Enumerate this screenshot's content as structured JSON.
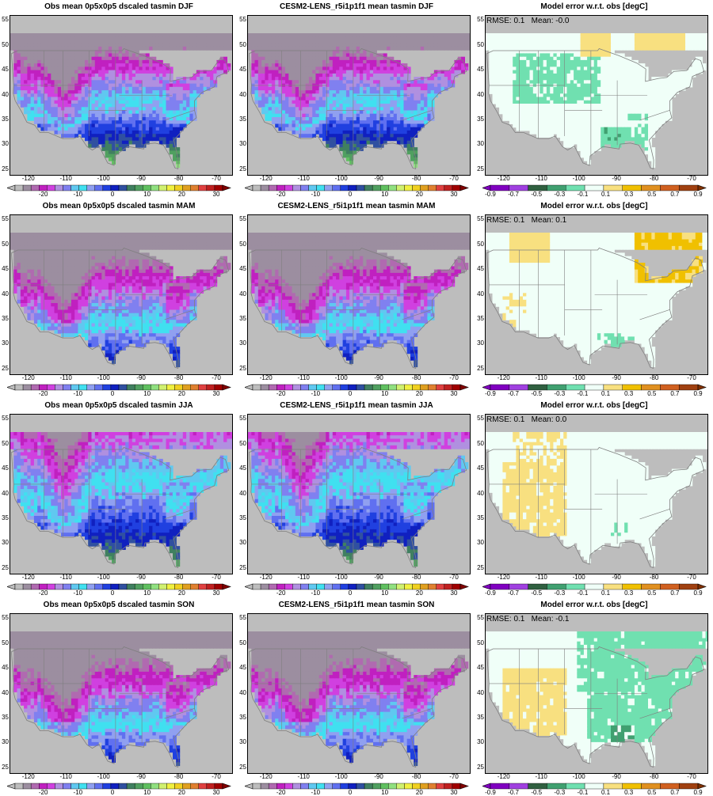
{
  "rows": [
    {
      "season": "DJF",
      "obs_title": "Obs mean 0p5x0p5 dscaled tasmin DJF",
      "model_title": "CESM2-LENS_r5i1p1f1 mean tasmin DJF",
      "err_title": "Model error w.r.t. obs [degC]",
      "stats": "RMSE: 0.1   Mean: -0.0"
    },
    {
      "season": "MAM",
      "obs_title": "Obs mean 0p5x0p5 dscaled tasmin MAM",
      "model_title": "CESM2-LENS_r5i1p1f1 mean tasmin MAM",
      "err_title": "Model error w.r.t. obs [degC]",
      "stats": "RMSE: 0.1   Mean: 0.1"
    },
    {
      "season": "JJA",
      "obs_title": "Obs mean 0p5x0p5 dscaled tasmin JJA",
      "model_title": "CESM2-LENS_r5i1p1f1 mean tasmin JJA",
      "err_title": "Model error w.r.t. obs [degC]",
      "stats": "RMSE: 0.1   Mean: 0.0"
    },
    {
      "season": "SON",
      "obs_title": "Obs mean 0p5x0p5 dscaled tasmin SON",
      "model_title": "CESM2-LENS_r5i1p1f1 mean tasmin SON",
      "err_title": "Model error w.r.t. obs [degC]",
      "stats": "RMSE: 0.1   Mean: -0.1"
    }
  ],
  "axes": {
    "lon_ticks": [
      "-120",
      "-110",
      "-100",
      "-90",
      "-80",
      "-70"
    ],
    "lat_ticks": [
      "55",
      "50",
      "45",
      "40",
      "35",
      "30",
      "25"
    ]
  },
  "temp_colorbar": {
    "labels": [
      "-20",
      "-10",
      "0",
      "10",
      "20",
      "30"
    ],
    "colors": [
      "#bdbdbd",
      "#9c8ea0",
      "#b06ab0",
      "#c020c0",
      "#d040e0",
      "#b090e0",
      "#8080f0",
      "#60c8f0",
      "#40e0f0",
      "#90a0f0",
      "#6070f0",
      "#2040e0",
      "#1020c0",
      "#3050a0",
      "#408060",
      "#50a060",
      "#60c060",
      "#90e080",
      "#d0f070",
      "#f0f040",
      "#f0d020",
      "#e0a020",
      "#e08030",
      "#e04040",
      "#c02020",
      "#a00000"
    ],
    "under": "#bdbdbd",
    "over": "#800000"
  },
  "err_colorbar": {
    "labels": [
      "-0.9",
      "-0.7",
      "-0.5",
      "-0.3",
      "-0.1",
      "0.1",
      "0.3",
      "0.5",
      "0.7",
      "0.9"
    ],
    "colors": [
      "#8000c0",
      "#a040e0",
      "#306040",
      "#40a070",
      "#70e0b0",
      "#f0fff8",
      "#f8e080",
      "#f0c000",
      "#e09020",
      "#d06020",
      "#a04010"
    ],
    "under": "#8000c0",
    "over": "#803000"
  },
  "map_colors": {
    "missing": "#bdbdbd",
    "border": "#7f7f7f"
  }
}
